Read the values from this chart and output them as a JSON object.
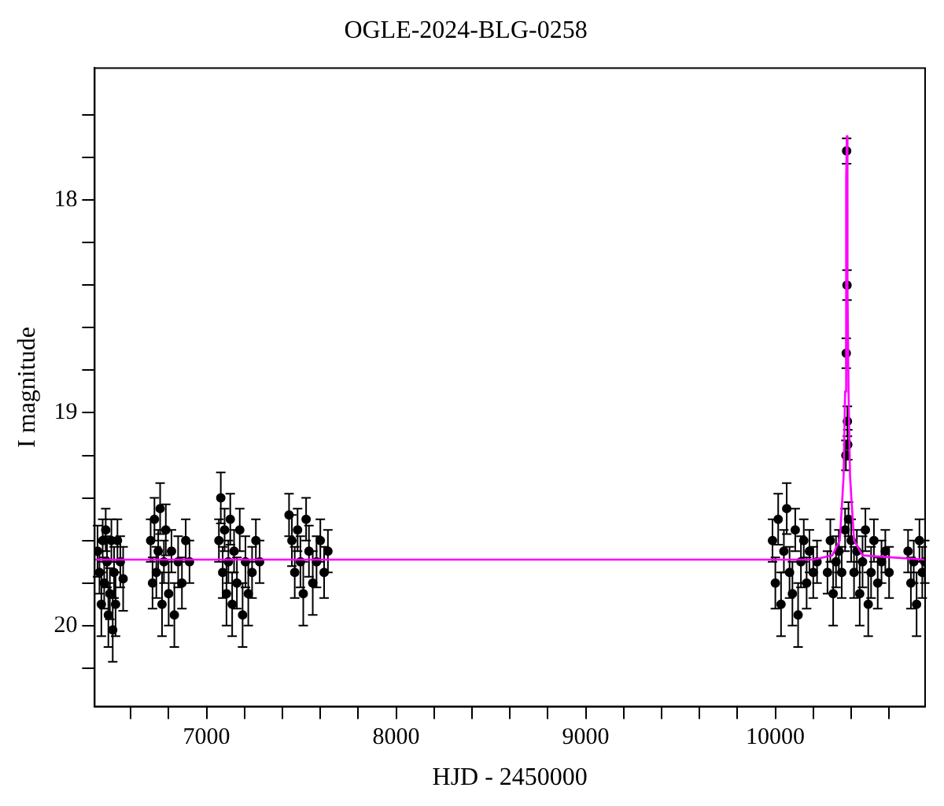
{
  "chart_data": {
    "type": "scatter",
    "title": "OGLE-2024-BLG-0258",
    "xlabel": "HJD - 2450000",
    "ylabel": "I magnitude",
    "xlim": [
      6410,
      10790
    ],
    "ylim": [
      20.38,
      17.38
    ],
    "xticks": [
      {
        "value": 6600,
        "label": null
      },
      {
        "value": 6800,
        "label": null
      },
      7000,
      {
        "value": 7200,
        "label": null
      },
      {
        "value": 7400,
        "label": null
      },
      {
        "value": 7600,
        "label": null
      },
      {
        "value": 7800,
        "label": null
      },
      8000,
      {
        "value": 8200,
        "label": null
      },
      {
        "value": 8400,
        "label": null
      },
      {
        "value": 8600,
        "label": null
      },
      {
        "value": 8800,
        "label": null
      },
      9000,
      {
        "value": 9200,
        "label": null
      },
      {
        "value": 9400,
        "label": null
      },
      {
        "value": 9600,
        "label": null
      },
      {
        "value": 9800,
        "label": null
      },
      10000,
      {
        "value": 10200,
        "label": null
      },
      {
        "value": 10400,
        "label": null
      },
      {
        "value": 10600,
        "label": null
      }
    ],
    "yticks": [
      {
        "value": 17.6,
        "label": null
      },
      {
        "value": 17.8,
        "label": null
      },
      18,
      {
        "value": 18.2,
        "label": null
      },
      {
        "value": 18.4,
        "label": null
      },
      {
        "value": 18.6,
        "label": null
      },
      {
        "value": 18.8,
        "label": null
      },
      19,
      {
        "value": 19.2,
        "label": null
      },
      {
        "value": 19.4,
        "label": null
      },
      {
        "value": 19.6,
        "label": null
      },
      {
        "value": 19.8,
        "label": null
      },
      20,
      {
        "value": 20.2,
        "label": null
      }
    ],
    "grid": false,
    "legend": false,
    "marker": "circle",
    "series": [
      {
        "color": "#000000",
        "x": [
          6425,
          6435,
          6445,
          6452,
          6460,
          6468,
          6475,
          6482,
          6490,
          6498,
          6505,
          6512,
          6520,
          6530,
          6545,
          6560,
          6705,
          6715,
          6725,
          6735,
          6745,
          6755,
          6765,
          6775,
          6785,
          6800,
          6815,
          6830,
          6850,
          6870,
          6890,
          6910,
          7065,
          7075,
          7085,
          7095,
          7105,
          7115,
          7125,
          7135,
          7145,
          7160,
          7175,
          7190,
          7205,
          7220,
          7240,
          7260,
          7280,
          7435,
          7450,
          7465,
          7480,
          7495,
          7510,
          7525,
          7540,
          7560,
          7580,
          7600,
          7620,
          7640,
          9985,
          10000,
          10015,
          10030,
          10045,
          10060,
          10075,
          10090,
          10105,
          10120,
          10135,
          10150,
          10165,
          10180,
          10200,
          10220,
          10275,
          10290,
          10305,
          10320,
          10335,
          10350,
          10368,
          10372,
          10374,
          10376,
          10378,
          10380,
          10382,
          10386,
          10400,
          10415,
          10430,
          10445,
          10460,
          10475,
          10490,
          10505,
          10520,
          10540,
          10560,
          10580,
          10600,
          10700,
          10715,
          10730,
          10745,
          10760,
          10775,
          10788
        ],
        "values": [
          19.65,
          19.75,
          19.9,
          19.6,
          19.8,
          19.55,
          19.7,
          19.95,
          19.85,
          19.6,
          20.02,
          19.75,
          19.9,
          19.6,
          19.7,
          19.78,
          19.6,
          19.8,
          19.5,
          19.75,
          19.65,
          19.45,
          19.9,
          19.7,
          19.55,
          19.85,
          19.65,
          19.95,
          19.7,
          19.8,
          19.6,
          19.7,
          19.6,
          19.4,
          19.75,
          19.55,
          19.85,
          19.7,
          19.5,
          19.9,
          19.65,
          19.8,
          19.55,
          19.95,
          19.7,
          19.85,
          19.75,
          19.6,
          19.7,
          19.48,
          19.6,
          19.75,
          19.55,
          19.7,
          19.85,
          19.5,
          19.65,
          19.8,
          19.7,
          19.6,
          19.75,
          19.65,
          19.6,
          19.8,
          19.5,
          19.9,
          19.65,
          19.45,
          19.75,
          19.85,
          19.55,
          19.95,
          19.7,
          19.6,
          19.8,
          19.65,
          19.75,
          19.7,
          19.75,
          19.6,
          19.85,
          19.7,
          19.65,
          19.75,
          19.55,
          19.2,
          18.72,
          17.77,
          18.4,
          19.04,
          19.15,
          19.5,
          19.6,
          19.75,
          19.65,
          19.85,
          19.7,
          19.55,
          19.9,
          19.75,
          19.6,
          19.8,
          19.7,
          19.65,
          19.75,
          19.65,
          19.8,
          19.7,
          19.9,
          19.6,
          19.75,
          19.7
        ],
        "errors": [
          0.12,
          0.1,
          0.15,
          0.1,
          0.12,
          0.1,
          0.12,
          0.15,
          0.12,
          0.1,
          0.15,
          0.12,
          0.15,
          0.1,
          0.12,
          0.15,
          0.1,
          0.12,
          0.1,
          0.12,
          0.1,
          0.12,
          0.15,
          0.1,
          0.12,
          0.15,
          0.1,
          0.15,
          0.12,
          0.12,
          0.1,
          0.1,
          0.1,
          0.12,
          0.12,
          0.1,
          0.15,
          0.1,
          0.12,
          0.15,
          0.1,
          0.12,
          0.1,
          0.15,
          0.12,
          0.15,
          0.12,
          0.1,
          0.1,
          0.1,
          0.12,
          0.12,
          0.1,
          0.12,
          0.15,
          0.1,
          0.12,
          0.15,
          0.12,
          0.1,
          0.12,
          0.1,
          0.1,
          0.12,
          0.12,
          0.15,
          0.1,
          0.12,
          0.12,
          0.15,
          0.1,
          0.15,
          0.12,
          0.1,
          0.12,
          0.1,
          0.12,
          0.1,
          0.1,
          0.1,
          0.15,
          0.12,
          0.1,
          0.12,
          0.1,
          0.07,
          0.07,
          0.06,
          0.07,
          0.07,
          0.07,
          0.08,
          0.1,
          0.12,
          0.1,
          0.15,
          0.12,
          0.1,
          0.15,
          0.12,
          0.1,
          0.12,
          0.1,
          0.1,
          0.12,
          0.1,
          0.12,
          0.1,
          0.15,
          0.1,
          0.12,
          0.1
        ]
      },
      {
        "type": "line",
        "color": "#ff00ff",
        "marker": "none",
        "x": [
          6410,
          10200,
          10300,
          10340,
          10360,
          10368,
          10372,
          10375,
          10377,
          10379,
          10382,
          10386,
          10394,
          10415,
          10460,
          10790
        ],
        "values": [
          19.69,
          19.69,
          19.67,
          19.6,
          19.3,
          18.9,
          18.4,
          17.9,
          17.7,
          17.9,
          18.4,
          18.9,
          19.3,
          19.6,
          19.67,
          19.69
        ]
      }
    ]
  }
}
